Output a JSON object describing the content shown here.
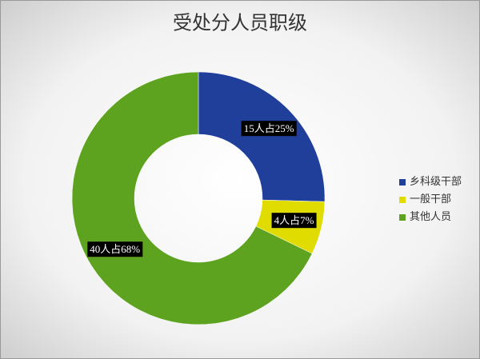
{
  "chart_data": {
    "type": "donut",
    "title": "受处分人员职级",
    "categories": [
      "乡科级干部",
      "一般干部",
      "其他人员"
    ],
    "values": [
      15,
      4,
      40
    ],
    "value_labels": [
      "15人占25%",
      "4人占7%",
      "40人占68%"
    ],
    "colors": [
      "#1f3f9a",
      "#e0dc00",
      "#5ea320"
    ],
    "legend": "right"
  }
}
